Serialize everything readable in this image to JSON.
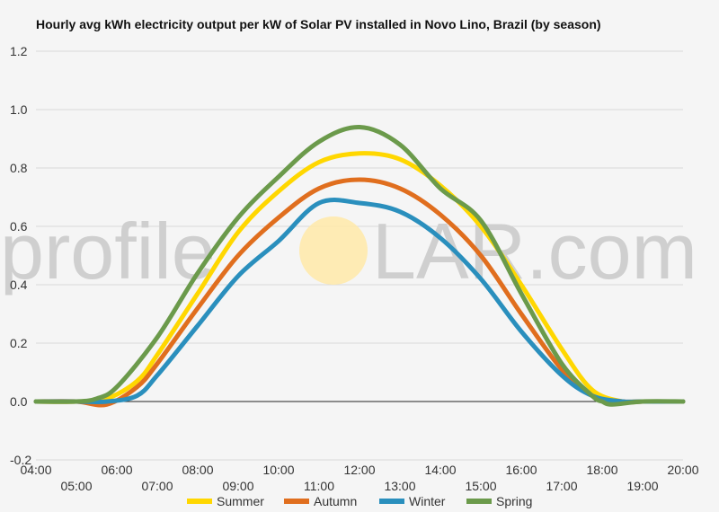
{
  "chart_data": {
    "type": "line",
    "title": "Hourly avg kWh electricity output per kW of Solar PV installed in Novo Lino, Brazil (by season)",
    "xlabel": "",
    "ylabel": "",
    "x_ticks": [
      "04:00",
      "05:00",
      "06:00",
      "07:00",
      "08:00",
      "09:00",
      "10:00",
      "11:00",
      "12:00",
      "13:00",
      "14:00",
      "15:00",
      "16:00",
      "17:00",
      "18:00",
      "19:00",
      "20:00"
    ],
    "x_range": [
      "04:00",
      "20:00"
    ],
    "ylim": [
      -0.2,
      1.2
    ],
    "y_ticks": [
      "-0.2",
      "0.0",
      "0.2",
      "0.4",
      "0.6",
      "0.8",
      "1.0",
      "1.2"
    ],
    "grid": true,
    "legend_position": "bottom",
    "series": [
      {
        "name": "Summer",
        "color": "#ffd700",
        "x": [
          "04:00",
          "05:00",
          "05:45",
          "06:30",
          "07:00",
          "08:00",
          "09:00",
          "10:00",
          "11:00",
          "12:00",
          "13:00",
          "14:00",
          "15:00",
          "16:00",
          "17:00",
          "17:45",
          "18:30",
          "19:00",
          "20:00"
        ],
        "values": [
          0.0,
          0.0,
          0.01,
          0.07,
          0.16,
          0.37,
          0.58,
          0.72,
          0.82,
          0.85,
          0.83,
          0.74,
          0.6,
          0.4,
          0.18,
          0.04,
          0.0,
          0.0,
          0.0
        ]
      },
      {
        "name": "Autumn",
        "color": "#e06e1e",
        "x": [
          "04:00",
          "05:00",
          "05:45",
          "06:30",
          "07:00",
          "08:00",
          "09:00",
          "10:00",
          "11:00",
          "12:00",
          "13:00",
          "14:00",
          "15:00",
          "16:00",
          "17:00",
          "17:45",
          "18:30",
          "19:00",
          "20:00"
        ],
        "values": [
          0.0,
          0.0,
          -0.01,
          0.05,
          0.13,
          0.32,
          0.5,
          0.63,
          0.73,
          0.76,
          0.73,
          0.64,
          0.5,
          0.3,
          0.11,
          0.02,
          0.0,
          0.0,
          0.0
        ]
      },
      {
        "name": "Winter",
        "color": "#2a8fbd",
        "x": [
          "04:00",
          "05:00",
          "05:45",
          "06:30",
          "07:00",
          "08:00",
          "09:00",
          "10:00",
          "11:00",
          "12:00",
          "13:00",
          "14:00",
          "15:00",
          "16:00",
          "17:00",
          "17:45",
          "18:30",
          "19:00",
          "20:00"
        ],
        "values": [
          0.0,
          0.0,
          0.0,
          0.02,
          0.09,
          0.26,
          0.43,
          0.55,
          0.68,
          0.68,
          0.65,
          0.56,
          0.42,
          0.24,
          0.09,
          0.02,
          0.0,
          0.0,
          0.0
        ]
      },
      {
        "name": "Spring",
        "color": "#6b9a4b",
        "x": [
          "04:00",
          "05:00",
          "05:30",
          "06:00",
          "07:00",
          "08:00",
          "09:00",
          "10:00",
          "11:00",
          "12:00",
          "13:00",
          "14:00",
          "15:00",
          "16:00",
          "17:00",
          "17:45",
          "18:00",
          "18:15",
          "19:00",
          "20:00"
        ],
        "values": [
          0.0,
          0.0,
          0.01,
          0.05,
          0.22,
          0.44,
          0.63,
          0.77,
          0.89,
          0.94,
          0.88,
          0.73,
          0.62,
          0.37,
          0.13,
          0.02,
          0.0,
          -0.01,
          0.0,
          0.0
        ]
      }
    ]
  },
  "watermark": {
    "left": "profile",
    "right": "LAR.com",
    "sun_color": "#ffe9a8"
  }
}
